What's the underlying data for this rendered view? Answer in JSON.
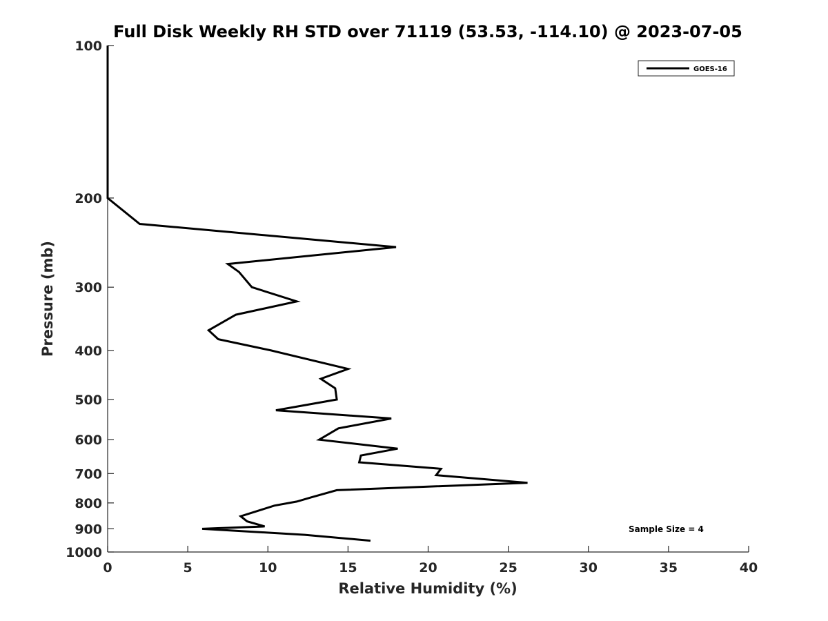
{
  "chart_data": {
    "type": "line",
    "title": "Full Disk Weekly RH STD over 71119 (53.53, -114.10) @ 2023-07-05",
    "xlabel": "Relative Humidity (%)",
    "ylabel": "Pressure (mb)",
    "xlim": [
      0,
      40
    ],
    "ylim": [
      100,
      1000
    ],
    "y_scale": "log",
    "y_reversed": true,
    "grid": false,
    "legend_position": "top-right",
    "x_ticks": [
      0,
      5,
      10,
      15,
      20,
      25,
      30,
      35,
      40
    ],
    "y_ticks": [
      100,
      200,
      300,
      400,
      500,
      600,
      700,
      800,
      900,
      1000
    ],
    "annotation": "Sample Size = 4",
    "series": [
      {
        "name": "GOES-16",
        "color": "#000000",
        "points": [
          [
            0,
            100
          ],
          [
            0,
            150
          ],
          [
            0,
            200
          ],
          [
            2,
            225
          ],
          [
            18,
            250
          ],
          [
            7.5,
            270
          ],
          [
            8.2,
            280
          ],
          [
            9.0,
            300
          ],
          [
            11.8,
            320
          ],
          [
            8.0,
            340
          ],
          [
            6.3,
            365
          ],
          [
            6.9,
            380
          ],
          [
            10.2,
            400
          ],
          [
            15.0,
            435
          ],
          [
            13.3,
            455
          ],
          [
            14.2,
            475
          ],
          [
            14.3,
            500
          ],
          [
            10.5,
            525
          ],
          [
            17.7,
            545
          ],
          [
            14.4,
            570
          ],
          [
            13.2,
            600
          ],
          [
            18.1,
            625
          ],
          [
            15.8,
            645
          ],
          [
            15.7,
            665
          ],
          [
            20.8,
            685
          ],
          [
            20.5,
            705
          ],
          [
            26.2,
            730
          ],
          [
            14.3,
            755
          ],
          [
            12.7,
            780
          ],
          [
            11.8,
            795
          ],
          [
            10.4,
            810
          ],
          [
            9.6,
            825
          ],
          [
            8.3,
            850
          ],
          [
            8.7,
            870
          ],
          [
            9.8,
            890
          ],
          [
            5.9,
            900
          ],
          [
            12.3,
            925
          ],
          [
            16.4,
            950
          ]
        ]
      }
    ]
  }
}
